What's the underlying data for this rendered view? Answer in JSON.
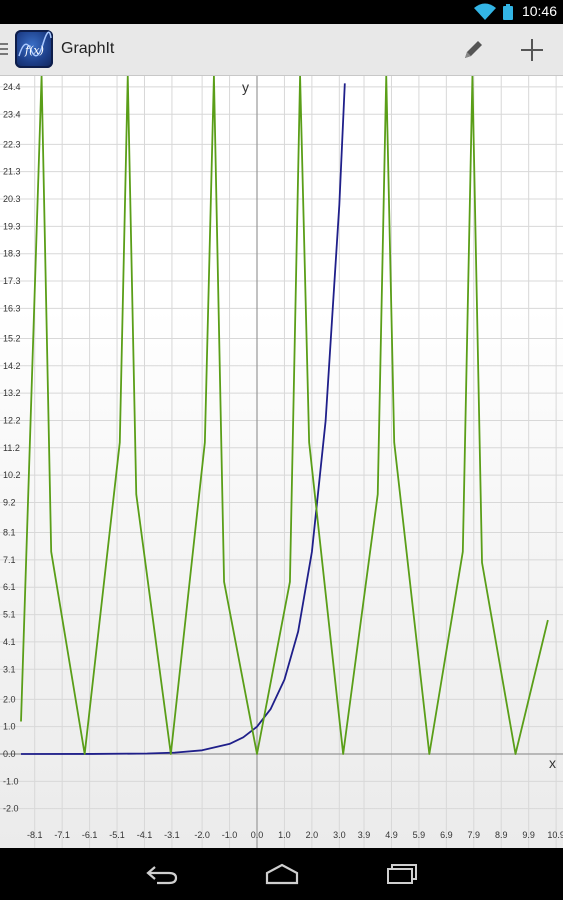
{
  "status_bar": {
    "time": "10:46",
    "icons": [
      "wifi-icon",
      "battery-icon"
    ]
  },
  "action_bar": {
    "title": "GraphIt",
    "logo_text": "f(x)",
    "actions": [
      {
        "name": "edit",
        "icon": "pencil-icon"
      },
      {
        "name": "add",
        "icon": "plus-icon"
      }
    ]
  },
  "chart_data": {
    "type": "line",
    "xlabel": "x",
    "ylabel": "y",
    "xlim": [
      -8.6,
      10.6
    ],
    "ylim": [
      -2.6,
      24.8
    ],
    "x_ticks": [
      "-8.1",
      "-7.1",
      "-6.1",
      "-5.1",
      "-4.1",
      "-3.1",
      "-2.0",
      "-1.0",
      "0.0",
      "1.0",
      "2.0",
      "3.0",
      "3.9",
      "4.9",
      "5.9",
      "6.9",
      "7.9",
      "8.9",
      "9.9",
      "10.9"
    ],
    "y_ticks": [
      "-2.0",
      "-1.0",
      "0.0",
      "1.0",
      "2.0",
      "3.1",
      "4.1",
      "5.1",
      "6.1",
      "7.1",
      "8.1",
      "9.2",
      "10.2",
      "11.2",
      "12.2",
      "13.2",
      "14.2",
      "15.2",
      "16.3",
      "17.3",
      "18.3",
      "19.3",
      "20.3",
      "21.3",
      "22.3",
      "23.4",
      "24.4"
    ],
    "grid": true,
    "series": [
      {
        "color": "#1f1f8a",
        "x": [
          -8.6,
          -6,
          -4,
          -3,
          -2,
          -1,
          -0.5,
          0,
          0.5,
          1,
          1.5,
          2,
          2.5,
          3,
          3.2
        ],
        "y": [
          0.0002,
          0.0025,
          0.018,
          0.05,
          0.135,
          0.37,
          0.61,
          1,
          1.65,
          2.72,
          4.48,
          7.39,
          12.18,
          20.09,
          24.53
        ]
      },
      {
        "color": "#5a9e18",
        "x": [
          -8.6,
          -7.85,
          -7.5,
          -6.28,
          -5.0,
          -4.71,
          -4.4,
          -3.14,
          -1.9,
          -1.57,
          -1.2,
          0,
          1.2,
          1.57,
          1.9,
          3.14,
          4.4,
          4.71,
          5.0,
          6.28,
          7.5,
          7.85,
          8.2,
          9.42,
          10.6
        ],
        "y": [
          1.19,
          24.8,
          7.4,
          0,
          11.4,
          24.8,
          9.5,
          0,
          11.4,
          24.8,
          6.3,
          0,
          6.3,
          24.8,
          11.4,
          0,
          9.5,
          24.8,
          11.4,
          0,
          7.4,
          24.8,
          7.0,
          0,
          4.9
        ]
      }
    ]
  },
  "nav_bar": {
    "buttons": [
      "back-icon",
      "home-icon",
      "recents-icon"
    ]
  }
}
